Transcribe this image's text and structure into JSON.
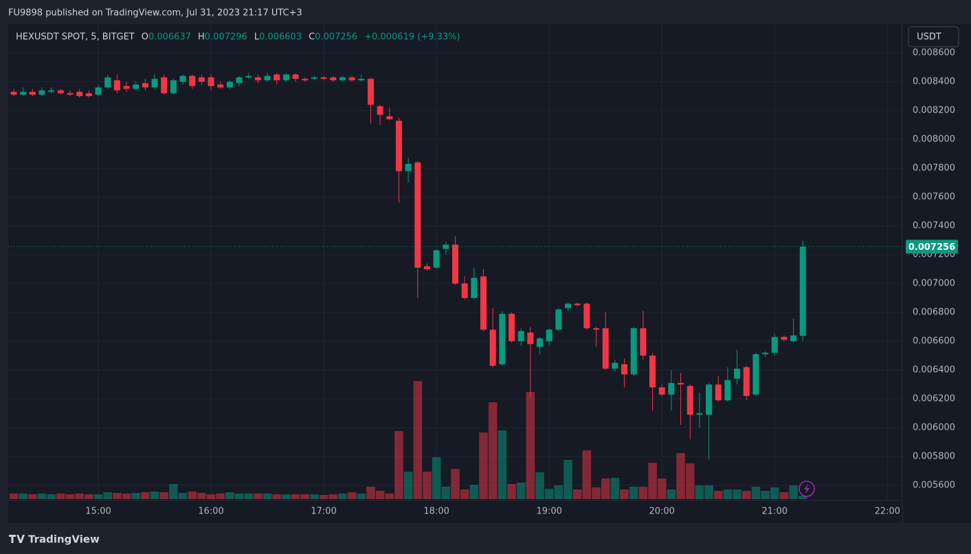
{
  "header": {
    "published": "FU9898 published on TradingView.com, Jul 31, 2023 21:17 UTC+3",
    "symbol": "HEXUSDT SPOT, 5, BITGET",
    "ohlc_keys": [
      "O",
      "H",
      "L",
      "C"
    ],
    "change": "+0.000619 (+9.33%)",
    "currency": "USDT",
    "logo": "TradingView"
  },
  "chart_data": {
    "type": "candlestick",
    "open": [
      0.00833,
      0.00831,
      0.00833,
      0.00831,
      0.00833,
      0.00834,
      0.00832,
      0.00833,
      0.00832,
      0.00831,
      0.00836,
      0.00841,
      0.00837,
      0.00835,
      0.00839,
      0.00836,
      0.00843,
      0.00832,
      0.0084,
      0.00844,
      0.00843,
      0.00843,
      0.00838,
      0.00836,
      0.00839,
      0.00843,
      0.00843,
      0.00841,
      0.00845,
      0.00841,
      0.00845,
      0.00842,
      0.00842,
      0.00843,
      0.00843,
      0.00841,
      0.00843,
      0.00841,
      0.00842,
      0.00823,
      0.00816,
      0.00813,
      0.00778,
      0.00784,
      0.00712,
      0.00711,
      0.00724,
      0.00727,
      0.007,
      0.0069,
      0.00705,
      0.00668,
      0.00644,
      0.00679,
      0.0066,
      0.00666,
      0.00656,
      0.0066,
      0.00668,
      0.00683,
      0.00686,
      0.00686,
      0.00669,
      0.00669,
      0.00641,
      0.00644,
      0.00637,
      0.00669,
      0.0065,
      0.00628,
      0.00623,
      0.00631,
      0.00629,
      0.00609,
      0.00609,
      0.0063,
      0.00619,
      0.00634,
      0.00642,
      0.00623,
      0.00651,
      0.00652,
      0.00663,
      0.0066,
      0.006637
    ],
    "high": [
      0.00835,
      0.00836,
      0.00835,
      0.00836,
      0.00836,
      0.00835,
      0.00834,
      0.00835,
      0.00834,
      0.00838,
      0.00845,
      0.00845,
      0.0084,
      0.0084,
      0.00842,
      0.00845,
      0.00845,
      0.00842,
      0.00845,
      0.00845,
      0.00845,
      0.00845,
      0.0084,
      0.00841,
      0.00844,
      0.00846,
      0.00845,
      0.00846,
      0.00846,
      0.00846,
      0.00846,
      0.00843,
      0.00844,
      0.00844,
      0.00844,
      0.00844,
      0.00844,
      0.00845,
      0.00843,
      0.00824,
      0.00822,
      0.00815,
      0.00787,
      0.00785,
      0.00714,
      0.00724,
      0.00729,
      0.00733,
      0.00705,
      0.00711,
      0.0071,
      0.00683,
      0.00681,
      0.0068,
      0.00669,
      0.0067,
      0.00663,
      0.00669,
      0.00683,
      0.00687,
      0.00687,
      0.00687,
      0.0067,
      0.0068,
      0.00647,
      0.00648,
      0.0067,
      0.00681,
      0.00652,
      0.0063,
      0.0064,
      0.00638,
      0.0063,
      0.00624,
      0.00631,
      0.00636,
      0.00642,
      0.00654,
      0.00643,
      0.00652,
      0.00653,
      0.00665,
      0.00664,
      0.00676,
      0.007296
    ],
    "low": [
      0.0083,
      0.0083,
      0.0083,
      0.0083,
      0.00832,
      0.00831,
      0.0083,
      0.00829,
      0.00829,
      0.0083,
      0.00835,
      0.00832,
      0.00833,
      0.00834,
      0.00834,
      0.00835,
      0.00831,
      0.00831,
      0.00838,
      0.00835,
      0.00838,
      0.00834,
      0.00835,
      0.00835,
      0.00837,
      0.00842,
      0.00839,
      0.0084,
      0.00838,
      0.0084,
      0.0084,
      0.0084,
      0.00841,
      0.00841,
      0.0084,
      0.0084,
      0.0084,
      0.0084,
      0.00811,
      0.0081,
      0.00813,
      0.00756,
      0.0077,
      0.0069,
      0.00709,
      0.0071,
      0.0072,
      0.00699,
      0.00689,
      0.00689,
      0.00667,
      0.00642,
      0.00643,
      0.00659,
      0.00657,
      0.00621,
      0.00651,
      0.00657,
      0.00667,
      0.00681,
      0.00684,
      0.00668,
      0.00656,
      0.0064,
      0.00639,
      0.00628,
      0.00636,
      0.00647,
      0.00612,
      0.00622,
      0.00612,
      0.00602,
      0.00592,
      0.006,
      0.00578,
      0.00618,
      0.00618,
      0.0063,
      0.00619,
      0.00622,
      0.00649,
      0.0065,
      0.0066,
      0.00659,
      0.006603
    ],
    "close": [
      0.00831,
      0.00833,
      0.00831,
      0.00834,
      0.00834,
      0.00832,
      0.00831,
      0.0083,
      0.0083,
      0.00836,
      0.00843,
      0.00834,
      0.00835,
      0.00838,
      0.00836,
      0.00842,
      0.00832,
      0.00841,
      0.00844,
      0.00837,
      0.0084,
      0.00837,
      0.00836,
      0.0084,
      0.00843,
      0.00844,
      0.00841,
      0.00844,
      0.00841,
      0.00845,
      0.00842,
      0.00841,
      0.00843,
      0.00842,
      0.00841,
      0.00843,
      0.00841,
      0.00842,
      0.00824,
      0.00817,
      0.00814,
      0.00778,
      0.00783,
      0.00711,
      0.0071,
      0.00723,
      0.00727,
      0.007,
      0.0069,
      0.00704,
      0.00668,
      0.00643,
      0.00679,
      0.0066,
      0.00667,
      0.00658,
      0.00662,
      0.00668,
      0.00682,
      0.00686,
      0.00685,
      0.00669,
      0.00668,
      0.00641,
      0.00645,
      0.00637,
      0.00669,
      0.0065,
      0.00628,
      0.00623,
      0.00631,
      0.0063,
      0.00609,
      0.0061,
      0.0063,
      0.00619,
      0.00633,
      0.00641,
      0.00622,
      0.00651,
      0.00652,
      0.00663,
      0.00661,
      0.00664,
      0.007256
    ],
    "volume": [
      8,
      8,
      7,
      8,
      7,
      8,
      7,
      8,
      7,
      7,
      10,
      9,
      8,
      9,
      10,
      11,
      10,
      22,
      9,
      11,
      9,
      7,
      8,
      10,
      8,
      8,
      8,
      8,
      7,
      7,
      7,
      7,
      7,
      6,
      7,
      8,
      10,
      8,
      18,
      12,
      8,
      99,
      40,
      172,
      40,
      61,
      18,
      44,
      14,
      21,
      97,
      141,
      100,
      22,
      24,
      156,
      39,
      15,
      20,
      57,
      14,
      71,
      17,
      30,
      31,
      14,
      18,
      18,
      53,
      30,
      14,
      67,
      52,
      20,
      20,
      12,
      14,
      14,
      12,
      18,
      12,
      17,
      10,
      20,
      5
    ],
    "vlim": [
      0,
      400
    ],
    "ylim": [
      0.005505,
      0.0088
    ],
    "yticks": [
      {
        "value": 0.0056,
        "label": "0.005600"
      },
      {
        "value": 0.0058,
        "label": "0.005800"
      },
      {
        "value": 0.006,
        "label": "0.006000"
      },
      {
        "value": 0.0062,
        "label": "0.006200"
      },
      {
        "value": 0.0064,
        "label": "0.006400"
      },
      {
        "value": 0.0066,
        "label": "0.006600"
      },
      {
        "value": 0.0068,
        "label": "0.006800"
      },
      {
        "value": 0.007,
        "label": "0.007000"
      },
      {
        "value": 0.0072,
        "label": "0.007200"
      },
      {
        "value": 0.0074,
        "label": "0.007400"
      },
      {
        "value": 0.0076,
        "label": "0.007600"
      },
      {
        "value": 0.0078,
        "label": "0.007800"
      },
      {
        "value": 0.008,
        "label": "0.008000"
      },
      {
        "value": 0.0082,
        "label": "0.008200"
      },
      {
        "value": 0.0084,
        "label": "0.008400"
      },
      {
        "value": 0.0086,
        "label": "0.008600"
      }
    ],
    "xticks": [
      "15:00",
      "16:00",
      "17:00",
      "18:00",
      "19:00",
      "20:00",
      "21:00",
      "22:00"
    ],
    "colors": {
      "up": "#089981",
      "down": "#f23645"
    },
    "grid": true
  }
}
